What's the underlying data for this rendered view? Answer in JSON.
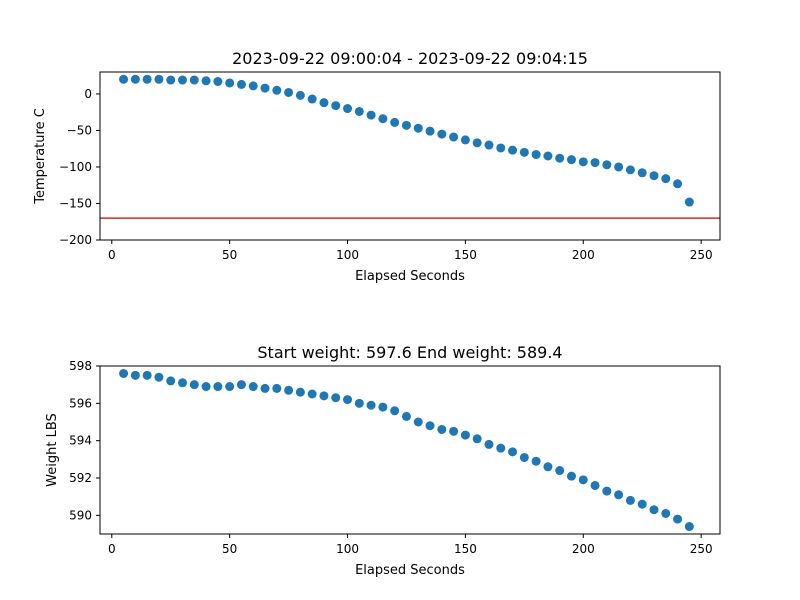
{
  "chart_data": [
    {
      "type": "scatter",
      "title": "2023-09-22 09:00:04 - 2023-09-22 09:04:15",
      "xlabel": "Elapsed Seconds",
      "ylabel": "Temperature C",
      "xlim": [
        -5,
        258
      ],
      "ylim": [
        -200,
        30
      ],
      "xticks": [
        0,
        50,
        100,
        150,
        200,
        250
      ],
      "yticks": [
        -200,
        -150,
        -100,
        -50,
        0
      ],
      "grid": false,
      "point_color": "#1f77b4",
      "hline": {
        "y": -170,
        "color": "#d62728"
      },
      "x": [
        5,
        10,
        15,
        20,
        25,
        30,
        35,
        40,
        45,
        50,
        55,
        60,
        65,
        70,
        75,
        80,
        85,
        90,
        95,
        100,
        105,
        110,
        115,
        120,
        125,
        130,
        135,
        140,
        145,
        150,
        155,
        160,
        165,
        170,
        175,
        180,
        185,
        190,
        195,
        200,
        205,
        210,
        215,
        220,
        225,
        230,
        235,
        240,
        245
      ],
      "y": [
        20,
        20,
        20,
        20,
        19,
        19,
        19,
        18,
        17,
        15,
        13,
        11,
        8,
        5,
        2,
        -2,
        -7,
        -12,
        -16,
        -20,
        -24,
        -29,
        -34,
        -39,
        -43,
        -47,
        -51,
        -55,
        -59,
        -63,
        -67,
        -70,
        -74,
        -77,
        -80,
        -83,
        -85,
        -88,
        -90,
        -93,
        -94,
        -97,
        -100,
        -104,
        -108,
        -112,
        -116,
        -123,
        -148
      ]
    },
    {
      "type": "scatter",
      "title": "Start weight: 597.6 End weight: 589.4",
      "xlabel": "Elapsed Seconds",
      "ylabel": "Weight LBS",
      "xlim": [
        -5,
        258
      ],
      "ylim": [
        589.0,
        598.0
      ],
      "xticks": [
        0,
        50,
        100,
        150,
        200,
        250
      ],
      "yticks": [
        590,
        592,
        594,
        596,
        598
      ],
      "grid": false,
      "point_color": "#1f77b4",
      "x": [
        5,
        10,
        15,
        20,
        25,
        30,
        35,
        40,
        45,
        50,
        55,
        60,
        65,
        70,
        75,
        80,
        85,
        90,
        95,
        100,
        105,
        110,
        115,
        120,
        125,
        130,
        135,
        140,
        145,
        150,
        155,
        160,
        165,
        170,
        175,
        180,
        185,
        190,
        195,
        200,
        205,
        210,
        215,
        220,
        225,
        230,
        235,
        240,
        245
      ],
      "y": [
        597.6,
        597.5,
        597.5,
        597.4,
        597.2,
        597.1,
        597.0,
        596.9,
        596.9,
        596.9,
        597.0,
        596.9,
        596.8,
        596.8,
        596.7,
        596.6,
        596.5,
        596.4,
        596.3,
        596.2,
        596.0,
        595.9,
        595.8,
        595.6,
        595.3,
        595.0,
        594.8,
        594.6,
        594.5,
        594.3,
        594.1,
        593.8,
        593.6,
        593.4,
        593.1,
        592.9,
        592.6,
        592.4,
        592.1,
        591.9,
        591.6,
        591.3,
        591.1,
        590.8,
        590.6,
        590.3,
        590.1,
        589.8,
        589.4
      ]
    }
  ]
}
